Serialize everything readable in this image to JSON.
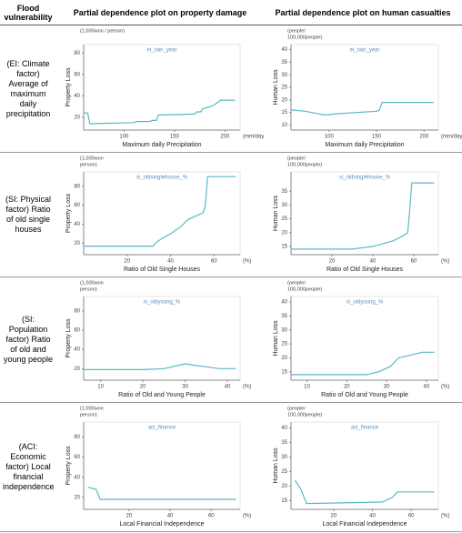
{
  "table": {
    "headers": [
      "Flood vulnerability",
      "Partial dependence plot on property damage",
      "Partial dependence plot on human casualties"
    ],
    "rows": [
      {
        "label": "(EI: Climate factor) Average of maximum daily precipitation",
        "charts": [
          {
            "type": "line",
            "title": "ei_rain_year",
            "ylabel": "Property Loss",
            "xlabel": "Maximum daily Precipitation",
            "yunit": [
              "(1,000won / person)"
            ],
            "xunit": "(mm/day)",
            "color": "#5bb8c4",
            "x": [
              60,
              64,
              66,
              110,
              112,
              125,
              128,
              132,
              134,
              170,
              172,
              176,
              178,
              186,
              190,
              196,
              210
            ],
            "values": [
              24,
              24,
              14,
              15,
              16,
              16,
              17,
              17,
              22,
              23,
              25,
              25,
              28,
              30,
              32,
              36,
              36
            ],
            "xlim": [
              60,
              215
            ],
            "ylim": [
              8,
              88
            ],
            "xticks": [
              100,
              150,
              200
            ],
            "yticks": [
              20,
              40,
              60,
              80
            ]
          },
          {
            "type": "line",
            "title": "ei_rain_year",
            "ylabel": "Human Loss",
            "xlabel": "Maximum daily Precipitation",
            "yunit": [
              "(people/",
              "100,000people)"
            ],
            "xunit": "(mm/day)",
            "color": "#5bb8c4",
            "x": [
              60,
              75,
              95,
              110,
              130,
              150,
              153,
              156,
              210
            ],
            "values": [
              16,
              15.5,
              14,
              14.5,
              15,
              15.5,
              16,
              19,
              19
            ],
            "xlim": [
              60,
              215
            ],
            "ylim": [
              8,
              42
            ],
            "xticks": [
              100,
              150,
              200
            ],
            "yticks": [
              10,
              15,
              20,
              25,
              30,
              35,
              40
            ]
          }
        ]
      },
      {
        "label": "(SI: Physical factor) Ratio of old single houses",
        "charts": [
          {
            "type": "line",
            "title": "si_oldsinglehouse_%",
            "ylabel": "Property Loss",
            "xlabel": "Ratio of Old Single Houses",
            "yunit": [
              "(1,000won",
              "person)"
            ],
            "xunit": "(%)",
            "color": "#5bb8c4",
            "x": [
              0,
              32,
              33,
              36,
              40,
              45,
              48,
              53,
              55,
              56,
              57,
              70
            ],
            "values": [
              17,
              17,
              20,
              25,
              30,
              38,
              45,
              50,
              52,
              60,
              90,
              90
            ],
            "xlim": [
              0,
              72
            ],
            "ylim": [
              8,
              95
            ],
            "xticks": [
              20,
              40,
              60
            ],
            "yticks": [
              20,
              40,
              60,
              80
            ]
          },
          {
            "type": "line",
            "title": "si_oldsinglehouse_%",
            "ylabel": "Human Loss",
            "xlabel": "Ratio of Old Single Houses",
            "yunit": [
              "(people/",
              "100,000people)"
            ],
            "xunit": "(%)",
            "color": "#5bb8c4",
            "x": [
              0,
              30,
              40,
              50,
              55,
              57,
              58,
              59,
              70
            ],
            "values": [
              14,
              14,
              15,
              17,
              19,
              20,
              28,
              38,
              38
            ],
            "xlim": [
              0,
              72
            ],
            "ylim": [
              12,
              42
            ],
            "xticks": [
              20,
              40,
              60
            ],
            "yticks": [
              15,
              20,
              25,
              30,
              35
            ]
          }
        ]
      },
      {
        "label": "(SI: Population factor) Ratio of old and young people",
        "charts": [
          {
            "type": "line",
            "title": "si_oldyoung_%",
            "ylabel": "Property Loss",
            "xlabel": "Ratio of Old and Young People",
            "yunit": [
              "(1,000won",
              "person)"
            ],
            "xunit": "(%)",
            "color": "#5bb8c4",
            "x": [
              6,
              20,
              25,
              28,
              30,
              33,
              35,
              38,
              42
            ],
            "values": [
              19,
              19,
              20,
              23,
              25,
              23,
              22,
              20,
              20
            ],
            "xlim": [
              6,
              43
            ],
            "ylim": [
              8,
              95
            ],
            "xticks": [
              10,
              20,
              30,
              40
            ],
            "yticks": [
              20,
              40,
              60,
              80
            ]
          },
          {
            "type": "line",
            "title": "si_oldyoung_%",
            "ylabel": "Human Loss",
            "xlabel": "Ratio of Old and Young People",
            "yunit": [
              "(people/",
              "100,000people)"
            ],
            "xunit": "(%)",
            "color": "#5bb8c4",
            "x": [
              6,
              25,
              28,
              31,
              33,
              36,
              39,
              42
            ],
            "values": [
              14,
              14,
              15,
              17,
              20,
              21,
              22,
              22
            ],
            "xlim": [
              6,
              43
            ],
            "ylim": [
              12,
              42
            ],
            "xticks": [
              10,
              20,
              30,
              40
            ],
            "yticks": [
              15,
              20,
              25,
              30,
              35,
              40
            ]
          }
        ]
      },
      {
        "label": "(ACI: Economic factor) Local financial independence",
        "charts": [
          {
            "type": "line",
            "title": "aci_finance",
            "ylabel": "Property Loss",
            "xlabel": "Local Financial Independence",
            "yunit": [
              "(1,000won",
              "person)"
            ],
            "xunit": "(%)",
            "color": "#5bb8c4",
            "x": [
              0,
              4,
              6,
              72
            ],
            "values": [
              30,
              28,
              18,
              18
            ],
            "xlim": [
              -2,
              74
            ],
            "ylim": [
              8,
              95
            ],
            "xticks": [
              20,
              40,
              60
            ],
            "yticks": [
              20,
              40,
              60,
              80
            ]
          },
          {
            "type": "line",
            "title": "aci_finance",
            "ylabel": "Human Loss",
            "xlabel": "Local Financial Independence",
            "yunit": [
              "(people/",
              "100,000people)"
            ],
            "xunit": "(%)",
            "color": "#5bb8c4",
            "x": [
              0,
              3,
              6,
              45,
              50,
              53,
              72
            ],
            "values": [
              22,
              19,
              14,
              14.5,
              16,
              18,
              18
            ],
            "xlim": [
              -2,
              74
            ],
            "ylim": [
              12,
              42
            ],
            "xticks": [
              20,
              40,
              60
            ],
            "yticks": [
              15,
              20,
              25,
              30,
              35,
              40
            ]
          }
        ]
      }
    ]
  }
}
